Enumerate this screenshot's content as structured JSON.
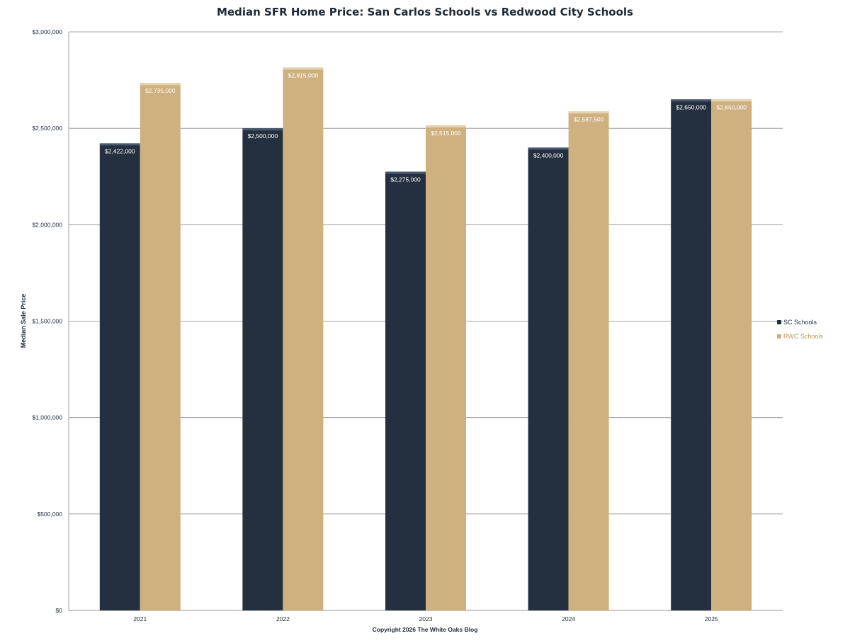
{
  "chart_data": {
    "type": "bar",
    "title": "Median SFR Home Price: San Carlos Schools vs Redwood City Schools",
    "ylabel": "Median Sale Price",
    "xlabel": "Copyright 2026 The White Oaks Blog",
    "categories": [
      "2021",
      "2022",
      "2023",
      "2024",
      "2025"
    ],
    "ylim": [
      0,
      3000000
    ],
    "yticks": [
      0,
      500000,
      1000000,
      1500000,
      2000000,
      2500000,
      3000000
    ],
    "ytick_labels": [
      "$0",
      "$500,000",
      "$1,000,000",
      "$1,500,000",
      "$2,000,000",
      "$2,500,000",
      "$3,000,000"
    ],
    "grid": true,
    "legend_position": "right",
    "series": [
      {
        "name": "SC Schools",
        "color": "#24303f",
        "label_color": "#ffffff",
        "values": [
          2422000,
          2500000,
          2275000,
          2400000,
          2650000
        ],
        "labels": [
          "$2,422,000",
          "$2,500,000",
          "$2,275,000",
          "$2,400,000",
          "$2,650,000"
        ]
      },
      {
        "name": "RWC Schools",
        "color": "#cfb07f",
        "label_color": "#ffffff",
        "values": [
          2735000,
          2815000,
          2515000,
          2587500,
          2650000
        ],
        "labels": [
          "$2,735,000",
          "$2,815,000",
          "$2,515,000",
          "$2,587,500",
          "$2,650,000"
        ]
      }
    ]
  }
}
